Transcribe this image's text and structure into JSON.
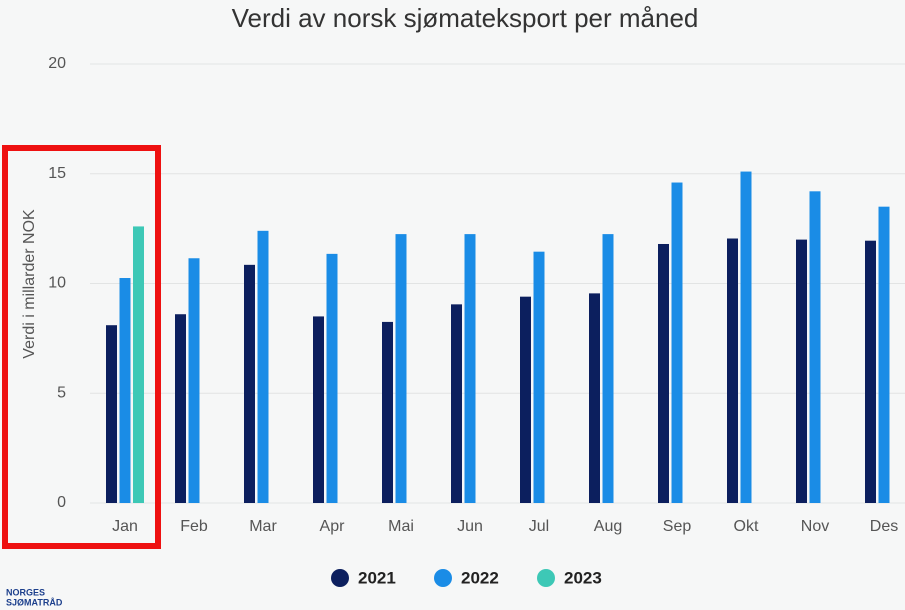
{
  "chart_data": {
    "type": "bar",
    "title": "Verdi av norsk sjømateksport per måned",
    "y_label": "Verdi i millarder NOK",
    "categories": [
      "Jan",
      "Feb",
      "Mar",
      "Apr",
      "Mai",
      "Jun",
      "Jul",
      "Aug",
      "Sep",
      "Okt",
      "Nov",
      "Des"
    ],
    "series": [
      {
        "name": "2021",
        "color": "#0c1f5e",
        "values": [
          8.1,
          8.6,
          10.85,
          8.5,
          8.25,
          9.05,
          9.4,
          9.55,
          11.8,
          12.05,
          12.0,
          11.95
        ]
      },
      {
        "name": "2022",
        "color": "#1a8ce6",
        "values": [
          10.25,
          11.15,
          12.4,
          11.35,
          12.25,
          12.25,
          11.45,
          12.25,
          14.6,
          15.1,
          14.2,
          13.5
        ]
      },
      {
        "name": "2023",
        "color": "#3dc8b6",
        "values": [
          12.6,
          null,
          null,
          null,
          null,
          null,
          null,
          null,
          null,
          null,
          null,
          null
        ]
      }
    ],
    "ylim": [
      0,
      20
    ],
    "yticks": [
      0,
      5,
      10,
      15,
      20
    ],
    "grid": true
  },
  "logo": {
    "line1": "NORGES",
    "line2": "SJØMATRÅD"
  }
}
